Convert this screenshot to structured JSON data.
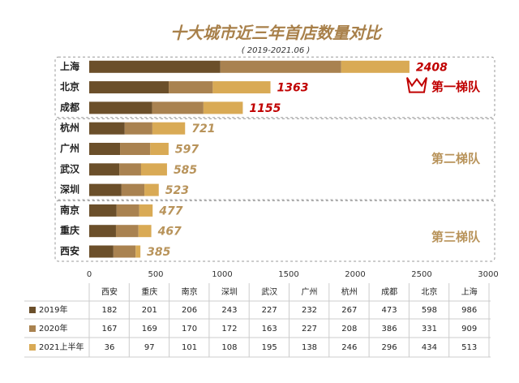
{
  "chart_data": {
    "type": "stacked-bar-horizontal",
    "title": "十大城市近三年首店数量对比",
    "subtitle": "( 2019-2021.06 )",
    "categories": [
      "西安",
      "重庆",
      "南京",
      "深圳",
      "武汉",
      "广州",
      "杭州",
      "成都",
      "北京",
      "上海"
    ],
    "series": [
      {
        "name": "2019年",
        "color": "#6b4f2a",
        "values": [
          182,
          201,
          206,
          243,
          227,
          232,
          267,
          473,
          598,
          986
        ]
      },
      {
        "name": "2020年",
        "color": "#a98250",
        "values": [
          167,
          169,
          170,
          172,
          163,
          227,
          208,
          386,
          331,
          909
        ]
      },
      {
        "name": "2021上半年",
        "color": "#d9aa55",
        "values": [
          36,
          97,
          101,
          108,
          195,
          138,
          246,
          296,
          434,
          513
        ]
      }
    ],
    "total_labels": [
      385,
      467,
      477,
      523,
      585,
      597,
      721,
      1155,
      1363,
      2408
    ],
    "tiers": [
      {
        "label": "第一梯队",
        "color": "#c00000",
        "members": [
          "上海",
          "北京",
          "成都"
        ]
      },
      {
        "label": "第二梯队",
        "color": "#b8935a",
        "members": [
          "杭州",
          "广州",
          "武汉",
          "深圳"
        ]
      },
      {
        "label": "第三梯队",
        "color": "#b8935a",
        "members": [
          "南京",
          "重庆",
          "西安"
        ]
      }
    ],
    "xlim": [
      0,
      3000
    ],
    "xticks": [
      0,
      500,
      1000,
      1500,
      2000,
      2500,
      3000
    ],
    "grid": false
  }
}
